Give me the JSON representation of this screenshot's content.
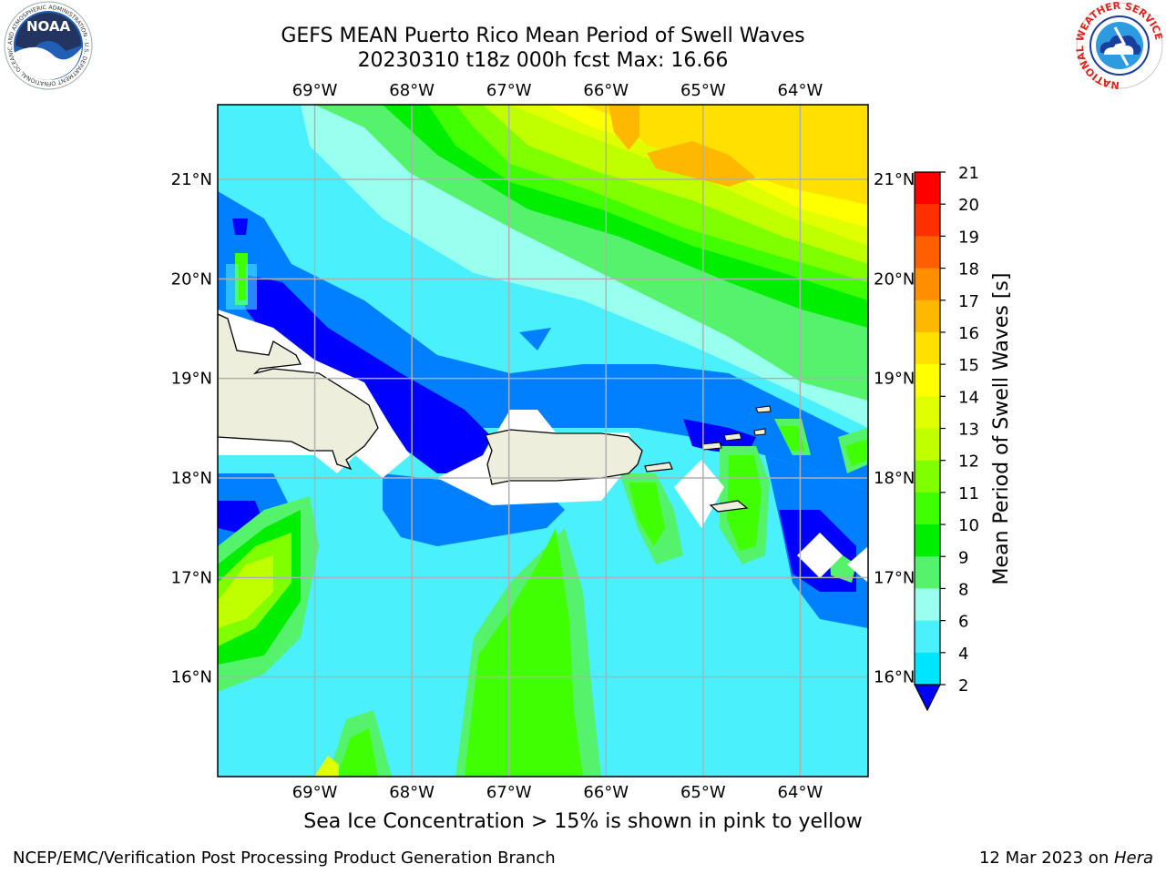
{
  "header": {
    "title_line1": "GEFS MEAN Puerto Rico Mean Period of Swell Waves",
    "title_line2": "20230310 t18z 000h fcst   Max: 16.66"
  },
  "logos": {
    "left": {
      "name": "noaa-logo",
      "text": "NOAA",
      "ring_text": "NATIONAL OCEANIC AND ATMOSPHERIC ADMINISTRATION · U.S. DEPARTMENT OF COMMERCE"
    },
    "right": {
      "name": "nws-logo",
      "ring_text": "NATIONAL WEATHER SERVICE"
    }
  },
  "map": {
    "lon_labels": [
      "69°W",
      "68°W",
      "67°W",
      "66°W",
      "65°W",
      "64°W"
    ],
    "lat_labels": [
      "21°N",
      "20°N",
      "19°N",
      "18°N",
      "17°N",
      "16°N"
    ],
    "lon_values": [
      -69,
      -68,
      -67,
      -66,
      -65,
      -64
    ],
    "lat_values": [
      21,
      20,
      19,
      18,
      17,
      16
    ],
    "extent": {
      "lon_min": -70.0,
      "lon_max": -63.3,
      "lat_min": 15.0,
      "lat_max": 21.75
    },
    "grid": true,
    "colors": {
      "ocean_base": "#4af0fb",
      "land": "#eeeedd",
      "grid": "#b0b0b0"
    }
  },
  "colorbar": {
    "label": "Mean Period of Swell Waves [s]",
    "ticks": [
      "21",
      "20",
      "19",
      "18",
      "17",
      "16",
      "15",
      "14",
      "13",
      "12",
      "11",
      "10",
      "9",
      "8",
      "6",
      "4",
      "2"
    ],
    "colors": [
      "#ff0000",
      "#ff3000",
      "#ff5f00",
      "#ff8f00",
      "#ffb800",
      "#ffe000",
      "#ffff00",
      "#e0ff00",
      "#c0ff00",
      "#80ff00",
      "#40ff00",
      "#00ee00",
      "#55f26c",
      "#99ffee",
      "#4af0fb",
      "#00e5ff",
      "#007fff",
      "#0000ff"
    ],
    "extend": "min"
  },
  "caption": "Sea Ice Concentration > 15% is shown in pink to yellow",
  "footer": {
    "left": "NCEP/EMC/Verification Post Processing Product Generation Branch",
    "right_prefix": "12 Mar 2023 on ",
    "right_italic": "Hera"
  }
}
